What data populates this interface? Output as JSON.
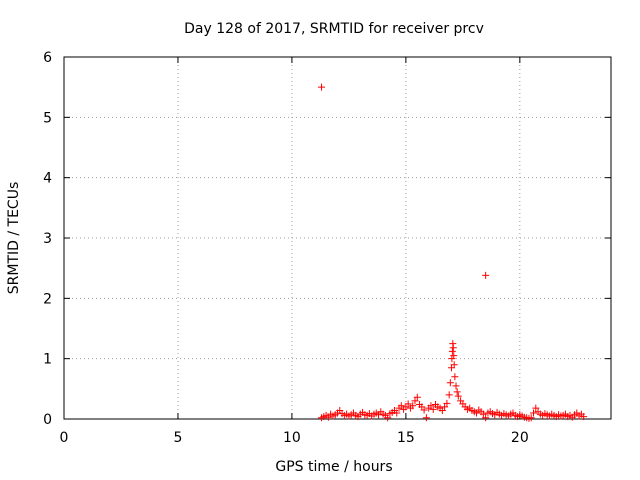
{
  "chart_data": {
    "type": "scatter",
    "title": "Day 128 of 2017, SRMTID for receiver prcv",
    "xlabel": "GPS time / hours",
    "ylabel": "SRMTID / TECUs",
    "xlim": [
      0,
      24
    ],
    "ylim": [
      0,
      6
    ],
    "xticks": [
      0,
      5,
      10,
      15,
      20
    ],
    "yticks": [
      0,
      1,
      2,
      3,
      4,
      5,
      6
    ],
    "grid": true,
    "marker": "plus",
    "marker_color": "#ff0000",
    "series": [
      {
        "points": [
          [
            11.3,
            5.5
          ],
          [
            18.5,
            2.38
          ],
          [
            11.3,
            0.02
          ],
          [
            11.4,
            0.04
          ],
          [
            11.5,
            0.06
          ],
          [
            11.6,
            0.03
          ],
          [
            11.7,
            0.08
          ],
          [
            11.8,
            0.05
          ],
          [
            11.9,
            0.07
          ],
          [
            12.0,
            0.1
          ],
          [
            12.1,
            0.14
          ],
          [
            12.2,
            0.09
          ],
          [
            12.3,
            0.06
          ],
          [
            12.4,
            0.08
          ],
          [
            12.5,
            0.05
          ],
          [
            12.6,
            0.07
          ],
          [
            12.7,
            0.1
          ],
          [
            12.8,
            0.06
          ],
          [
            12.9,
            0.04
          ],
          [
            13.0,
            0.08
          ],
          [
            13.1,
            0.11
          ],
          [
            13.2,
            0.07
          ],
          [
            13.3,
            0.06
          ],
          [
            13.4,
            0.09
          ],
          [
            13.5,
            0.05
          ],
          [
            13.6,
            0.08
          ],
          [
            13.7,
            0.1
          ],
          [
            13.8,
            0.07
          ],
          [
            13.9,
            0.12
          ],
          [
            14.0,
            0.08
          ],
          [
            14.1,
            0.06
          ],
          [
            14.2,
            0.02
          ],
          [
            14.3,
            0.09
          ],
          [
            14.4,
            0.11
          ],
          [
            14.5,
            0.14
          ],
          [
            14.6,
            0.1
          ],
          [
            14.7,
            0.18
          ],
          [
            14.8,
            0.22
          ],
          [
            14.9,
            0.16
          ],
          [
            15.0,
            0.2
          ],
          [
            15.1,
            0.25
          ],
          [
            15.2,
            0.18
          ],
          [
            15.3,
            0.22
          ],
          [
            15.4,
            0.3
          ],
          [
            15.5,
            0.36
          ],
          [
            15.6,
            0.24
          ],
          [
            15.7,
            0.2
          ],
          [
            15.8,
            0.15
          ],
          [
            15.9,
            0.02
          ],
          [
            16.0,
            0.18
          ],
          [
            16.1,
            0.22
          ],
          [
            16.2,
            0.16
          ],
          [
            16.3,
            0.24
          ],
          [
            16.4,
            0.2
          ],
          [
            16.5,
            0.18
          ],
          [
            16.6,
            0.14
          ],
          [
            16.7,
            0.2
          ],
          [
            16.8,
            0.26
          ],
          [
            16.9,
            0.4
          ],
          [
            16.95,
            0.6
          ],
          [
            17.0,
            0.85
          ],
          [
            17.02,
            1.0
          ],
          [
            17.04,
            1.12
          ],
          [
            17.06,
            1.25
          ],
          [
            17.08,
            1.18
          ],
          [
            17.1,
            1.05
          ],
          [
            17.12,
            0.9
          ],
          [
            17.15,
            0.7
          ],
          [
            17.2,
            0.55
          ],
          [
            17.25,
            0.45
          ],
          [
            17.3,
            0.38
          ],
          [
            17.4,
            0.3
          ],
          [
            17.5,
            0.25
          ],
          [
            17.6,
            0.2
          ],
          [
            17.7,
            0.16
          ],
          [
            17.8,
            0.18
          ],
          [
            17.9,
            0.14
          ],
          [
            18.0,
            0.12
          ],
          [
            18.1,
            0.1
          ],
          [
            18.2,
            0.15
          ],
          [
            18.3,
            0.12
          ],
          [
            18.4,
            0.08
          ],
          [
            18.5,
            0.02
          ],
          [
            18.6,
            0.1
          ],
          [
            18.7,
            0.12
          ],
          [
            18.8,
            0.09
          ],
          [
            18.9,
            0.07
          ],
          [
            19.0,
            0.11
          ],
          [
            19.1,
            0.08
          ],
          [
            19.2,
            0.06
          ],
          [
            19.3,
            0.09
          ],
          [
            19.4,
            0.07
          ],
          [
            19.5,
            0.05
          ],
          [
            19.6,
            0.08
          ],
          [
            19.7,
            0.1
          ],
          [
            19.8,
            0.06
          ],
          [
            19.9,
            0.04
          ],
          [
            20.0,
            0.07
          ],
          [
            20.1,
            0.05
          ],
          [
            20.2,
            0.03
          ],
          [
            20.3,
            0.02
          ],
          [
            20.4,
            0.01
          ],
          [
            20.5,
            0.02
          ],
          [
            20.6,
            0.1
          ],
          [
            20.7,
            0.18
          ],
          [
            20.8,
            0.12
          ],
          [
            20.9,
            0.08
          ],
          [
            21.0,
            0.06
          ],
          [
            21.1,
            0.09
          ],
          [
            21.2,
            0.07
          ],
          [
            21.3,
            0.05
          ],
          [
            21.4,
            0.08
          ],
          [
            21.5,
            0.06
          ],
          [
            21.6,
            0.04
          ],
          [
            21.7,
            0.07
          ],
          [
            21.8,
            0.05
          ],
          [
            21.9,
            0.06
          ],
          [
            22.0,
            0.08
          ],
          [
            22.1,
            0.04
          ],
          [
            22.2,
            0.06
          ],
          [
            22.3,
            0.03
          ],
          [
            22.4,
            0.07
          ],
          [
            22.5,
            0.1
          ],
          [
            22.6,
            0.05
          ],
          [
            22.7,
            0.08
          ],
          [
            22.8,
            0.04
          ]
        ]
      }
    ]
  }
}
